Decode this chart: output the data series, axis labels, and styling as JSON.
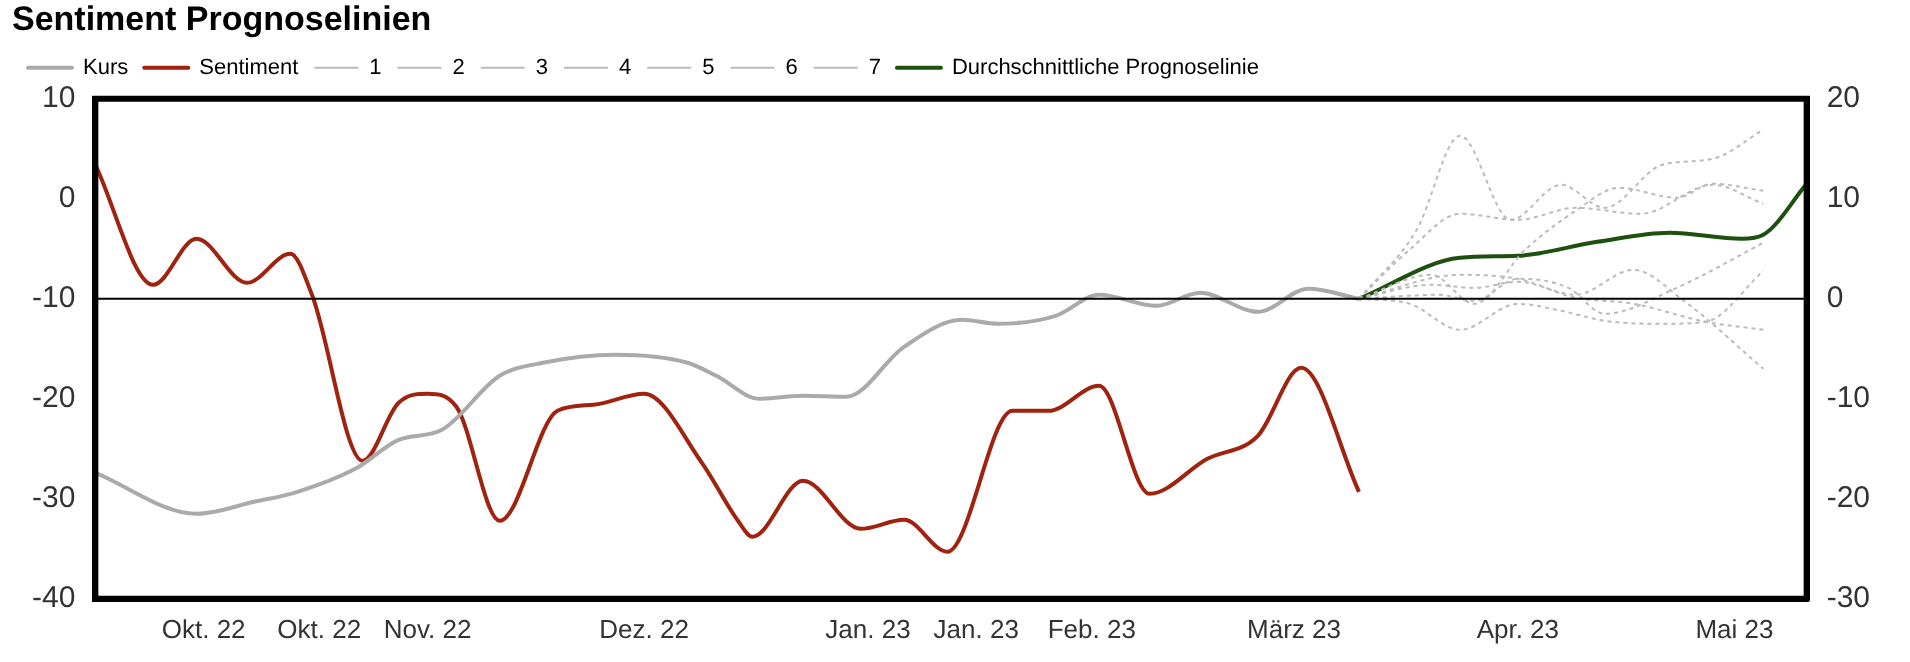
{
  "chart_data": {
    "type": "line",
    "title": "Sentiment Prognoselinien",
    "legend": "top left",
    "grid": false,
    "marker": "none",
    "xlim": [
      "2022-09-16",
      "2023-05-11"
    ],
    "xticks": [
      {
        "value": "2022-10-01",
        "label": "Okt. 22"
      },
      {
        "value": "2022-10-17",
        "label": "Okt. 22"
      },
      {
        "value": "2022-11-01",
        "label": "Nov. 22"
      },
      {
        "value": "2022-12-01",
        "label": "Dez. 22"
      },
      {
        "value": "2023-01-01",
        "label": "Jan. 23"
      },
      {
        "value": "2023-01-16",
        "label": "Jan. 23"
      },
      {
        "value": "2023-02-01",
        "label": "Feb. 23"
      },
      {
        "value": "2023-03-01",
        "label": "März 23"
      },
      {
        "value": "2023-04-01",
        "label": "Apr. 23"
      },
      {
        "value": "2023-05-01",
        "label": "Mai 23"
      }
    ],
    "ylim": [
      -40,
      10
    ],
    "yticks": [
      -40,
      -30,
      -20,
      -10,
      0,
      10
    ],
    "y2lim": [
      -30,
      20
    ],
    "y2ticks": [
      -30,
      -20,
      -10,
      0,
      10,
      20
    ],
    "ref_lines": [
      {
        "axis": "y2",
        "value": 0,
        "color": "#000000"
      }
    ],
    "series": [
      {
        "name": "Kurs",
        "color": "#aaaaaa",
        "line_style": "solid",
        "x": [
          "2022-09-16",
          "2022-09-30",
          "2022-10-08",
          "2022-10-14",
          "2022-10-22",
          "2022-10-28",
          "2022-11-03",
          "2022-11-11",
          "2022-11-17",
          "2022-11-27",
          "2022-12-07",
          "2022-12-11",
          "2022-12-17",
          "2022-12-23",
          "2022-12-29",
          "2023-01-06",
          "2023-01-14",
          "2023-01-19",
          "2023-01-27",
          "2023-02-02",
          "2023-02-10",
          "2023-02-16",
          "2023-02-24",
          "2023-03-03",
          "2023-03-10"
        ],
        "values": [
          -27.4,
          -31.5,
          -30.3,
          -29.3,
          -27.0,
          -24.1,
          -23.1,
          -17.7,
          -16.4,
          -15.6,
          -16.4,
          -17.7,
          -20.0,
          -19.7,
          -19.8,
          -14.8,
          -12.1,
          -12.5,
          -11.7,
          -9.6,
          -10.7,
          -9.4,
          -11.3,
          -9.0,
          -10.0
        ]
      },
      {
        "name": "Sentiment",
        "color": "#a0230f",
        "line_style": "solid",
        "axis": "y2",
        "x": [
          "2022-09-16",
          "2022-09-24",
          "2022-09-30",
          "2022-10-07",
          "2022-10-13",
          "2022-10-16",
          "2022-10-23",
          "2022-10-28",
          "2022-11-01",
          "2022-11-05",
          "2022-11-11",
          "2022-11-19",
          "2022-11-24",
          "2022-12-01",
          "2022-12-09",
          "2022-12-14",
          "2022-12-16",
          "2022-12-23",
          "2022-12-31",
          "2023-01-06",
          "2023-01-12",
          "2023-01-21",
          "2023-01-26",
          "2023-02-02",
          "2023-02-09",
          "2023-02-17",
          "2023-02-24",
          "2023-03-02",
          "2023-03-10"
        ],
        "values": [
          13.4,
          1.4,
          6.0,
          1.6,
          4.5,
          0.4,
          -16.2,
          -10.4,
          -9.5,
          -10.8,
          -22.2,
          -11.2,
          -10.6,
          -9.5,
          -16.4,
          -22.2,
          -23.8,
          -18.2,
          -23.0,
          -22.1,
          -25.3,
          -11.2,
          -11.2,
          -8.7,
          -19.5,
          -16.0,
          -13.7,
          -6.9,
          -19.3
        ]
      },
      {
        "name": "1",
        "color": "#bbbbbb",
        "line_style": "dotted",
        "axis": "y2",
        "x": [
          "2023-03-10",
          "2023-03-18",
          "2023-03-24",
          "2023-03-31",
          "2023-04-07",
          "2023-04-13",
          "2023-04-21",
          "2023-04-28",
          "2023-05-05"
        ],
        "values": [
          0,
          6.9,
          16.3,
          7.9,
          11.4,
          9.1,
          13.4,
          14.0,
          16.9
        ]
      },
      {
        "name": "2",
        "color": "#bbbbbb",
        "line_style": "dotted",
        "axis": "y2",
        "x": [
          "2023-03-10",
          "2023-03-17",
          "2023-03-24",
          "2023-04-01",
          "2023-04-09",
          "2023-04-18",
          "2023-04-28",
          "2023-05-05"
        ],
        "values": [
          0,
          4.9,
          8.5,
          7.9,
          9.1,
          8.5,
          11.4,
          9.5
        ]
      },
      {
        "name": "3",
        "color": "#bbbbbb",
        "line_style": "dotted",
        "axis": "y2",
        "x": [
          "2023-03-10",
          "2023-03-20",
          "2023-03-26",
          "2023-04-02",
          "2023-04-09",
          "2023-04-15",
          "2023-04-23",
          "2023-04-28",
          "2023-05-05"
        ],
        "values": [
          0,
          2.4,
          -0.5,
          4.9,
          8.8,
          11.1,
          10.1,
          11.5,
          10.8
        ]
      },
      {
        "name": "4",
        "color": "#bbbbbb",
        "line_style": "dotted",
        "axis": "y2",
        "x": [
          "2023-03-10",
          "2023-03-24",
          "2023-04-01",
          "2023-04-09",
          "2023-04-17",
          "2023-04-24",
          "2023-05-05"
        ],
        "values": [
          0,
          2.4,
          2.0,
          0.4,
          2.9,
          -0.2,
          -7.0
        ]
      },
      {
        "name": "5",
        "color": "#bbbbbb",
        "line_style": "dotted",
        "axis": "y2",
        "x": [
          "2023-03-10",
          "2023-03-17",
          "2023-03-24",
          "2023-04-01",
          "2023-04-07",
          "2023-04-13",
          "2023-04-21",
          "2023-04-27",
          "2023-05-05"
        ],
        "values": [
          0,
          -0.5,
          -3.1,
          -0.5,
          -1.2,
          -2.2,
          -2.5,
          -2.3,
          2.8
        ]
      },
      {
        "name": "6",
        "color": "#bbbbbb",
        "line_style": "dotted",
        "axis": "y2",
        "x": [
          "2023-03-10",
          "2023-03-21",
          "2023-03-26",
          "2023-04-01",
          "2023-04-08",
          "2023-04-13",
          "2023-04-23",
          "2023-05-05"
        ],
        "values": [
          0,
          0.4,
          -0.2,
          2.0,
          1.1,
          -1.5,
          1.1,
          5.6
        ]
      },
      {
        "name": "7",
        "color": "#bbbbbb",
        "line_style": "dotted",
        "axis": "y2",
        "x": [
          "2023-03-10",
          "2023-03-20",
          "2023-03-26",
          "2023-04-01",
          "2023-04-09",
          "2023-04-17",
          "2023-04-27",
          "2023-05-05"
        ],
        "values": [
          0,
          1.4,
          1.1,
          1.7,
          0.1,
          -0.5,
          -2.3,
          -3.1
        ]
      },
      {
        "name": "Durchschnittliche Prognoselinie",
        "color": "#1e5010",
        "line_style": "solid",
        "axis": "y2",
        "x": [
          "2023-03-10",
          "2023-03-24",
          "2023-04-01",
          "2023-04-12",
          "2023-04-22",
          "2023-05-02",
          "2023-05-05",
          "2023-05-11"
        ],
        "values": [
          0,
          4.1,
          4.3,
          5.7,
          6.6,
          6.0,
          6.4,
          11.5
        ]
      }
    ]
  }
}
